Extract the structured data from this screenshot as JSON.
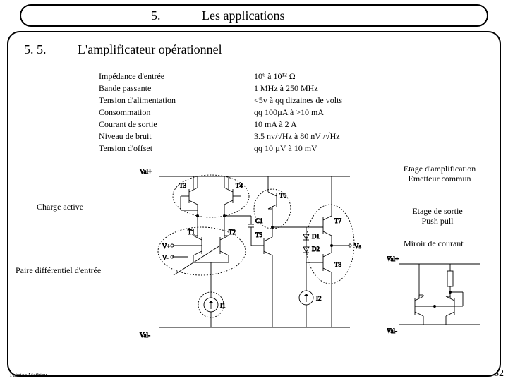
{
  "title": {
    "number": "5.",
    "text": "Les applications"
  },
  "section": {
    "number": "5. 5.",
    "title": "L'amplificateur opérationnel"
  },
  "specs": [
    {
      "label": "Impédance d'entrée",
      "value": "10⁶ à 10¹² Ω"
    },
    {
      "label": "Bande passante",
      "value": "1 MHz à 250 MHz"
    },
    {
      "label": "Tension d'alimentation",
      "value": "<5v à qq dizaines de volts"
    },
    {
      "label": "Consommation",
      "value": "qq 100µA  à  >10 mA"
    },
    {
      "label": "Courant de sortie",
      "value": "10 mA à 2 A"
    },
    {
      "label": "Niveau de bruit",
      "value": "3.5 nv/√Hz à 80 nV /√Hz"
    },
    {
      "label": "Tension d'offset",
      "value": "qq 10 µV à 10 mV"
    }
  ],
  "annotations": {
    "amplification": "Etage d'amplification\nEmetteur commun",
    "charge_active": "Charge active",
    "push_pull": "Etage de sortie\nPush pull",
    "mirror": "Miroir de courant",
    "pair": "Paire différentiel d'entrée"
  },
  "footer": "Fabrice Mathieu",
  "page_number": "32",
  "circuit": {
    "type": "schematic",
    "labels": {
      "top_rail": "Val+",
      "bot_rail": "Val-",
      "T3": "T3",
      "T4": "T4",
      "T1": "T1",
      "T2": "T2",
      "T5": "T5",
      "T6": "T6",
      "T7": "T7",
      "T8": "T8",
      "Vp": "V+",
      "Vn": "V-",
      "Vs": "Vs",
      "C1": "C1",
      "D1": "D1",
      "D2": "D2",
      "I1": "I1",
      "I2": "I2"
    },
    "colors": {
      "line": "#000000",
      "dash": "#000000",
      "bg": "#ffffff"
    },
    "stroke_width": 0.9,
    "ellipse_dash": "2,2"
  },
  "mirror": {
    "type": "schematic",
    "labels": {
      "rail": "Val+",
      "gnd": "Val-"
    },
    "colors": {
      "line": "#000000"
    },
    "stroke_width": 0.9
  }
}
